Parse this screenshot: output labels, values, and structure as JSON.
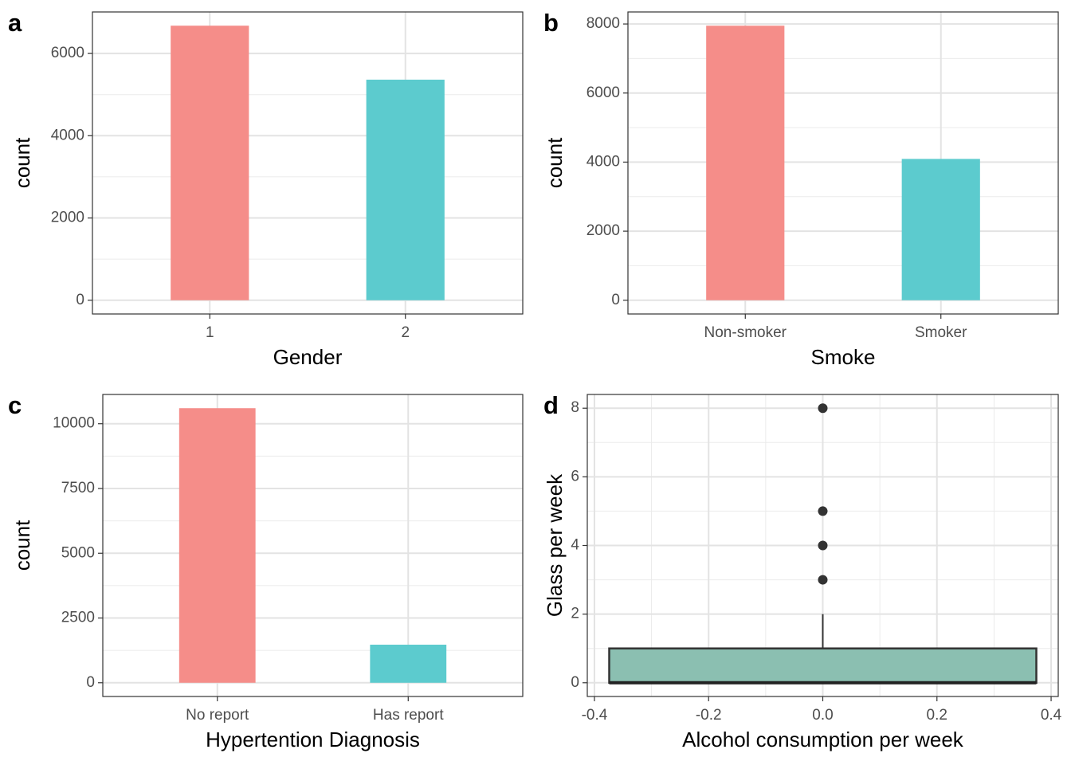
{
  "chart_data": [
    {
      "type": "bar",
      "panel_label": "a",
      "xlabel": "Gender",
      "ylabel": "count",
      "categories": [
        "1",
        "2"
      ],
      "values": [
        6675,
        5363
      ],
      "colors": [
        "#f58d89",
        "#5ccbce"
      ],
      "ylim": [
        -334,
        7009
      ],
      "yticks": [
        0,
        2000,
        4000,
        6000
      ],
      "grid": true
    },
    {
      "type": "bar",
      "panel_label": "b",
      "xlabel": "Smoke",
      "ylabel": "count",
      "categories": [
        "Non-smoker",
        "Smoker"
      ],
      "values": [
        7950,
        4092
      ],
      "colors": [
        "#f58d89",
        "#5ccbce"
      ],
      "ylim": [
        -398,
        8348
      ],
      "yticks": [
        0,
        2000,
        4000,
        6000,
        8000
      ],
      "grid": true
    },
    {
      "type": "bar",
      "panel_label": "c",
      "xlabel": "Hypertention Diagnosis",
      "ylabel": "count",
      "categories": [
        "No report",
        "Has report"
      ],
      "values": [
        10600,
        1470
      ],
      "colors": [
        "#f58d89",
        "#5ccbce"
      ],
      "ylim": [
        -530,
        11130
      ],
      "yticks": [
        0,
        2500,
        5000,
        7500,
        10000
      ],
      "grid": true
    },
    {
      "type": "boxplot",
      "panel_label": "d",
      "xlabel": "Alcohol consumption per week",
      "ylabel": "Glass per week",
      "box": {
        "x": 0,
        "min": 0,
        "q1": 0,
        "median": 0,
        "q3": 1,
        "max": 2,
        "outliers": [
          3,
          4,
          5,
          8
        ],
        "color": "#8bbfb1"
      },
      "xlim": [
        -0.4125,
        0.4125
      ],
      "xticks": [
        -0.4,
        -0.2,
        {
          "value": 0,
          "label": "0.0"
        },
        0.2,
        0.4
      ],
      "ylim": [
        -0.4,
        8.4
      ],
      "yticks": [
        0,
        2,
        4,
        6,
        8
      ],
      "grid": true
    }
  ]
}
